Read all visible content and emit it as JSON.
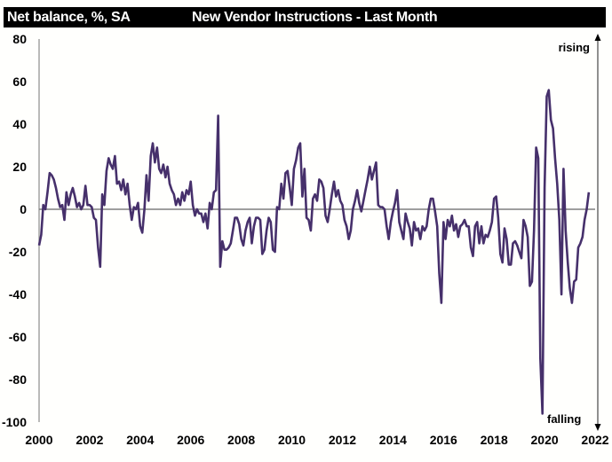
{
  "chart_data": {
    "type": "line",
    "title": "New Vendor Instructions - Last Month",
    "ylabel": "Net balance, %, SA",
    "xlabel": "",
    "ylim": [
      -100,
      80
    ],
    "xlim": [
      2000,
      2022
    ],
    "yticks": [
      "80",
      "60",
      "40",
      "20",
      "0",
      "-20",
      "-40",
      "-60",
      "-80",
      "-100"
    ],
    "ytick_values": [
      80,
      60,
      40,
      20,
      0,
      -20,
      -40,
      -60,
      -80,
      -100
    ],
    "xticks": [
      "2000",
      "2002",
      "2004",
      "2006",
      "2008",
      "2010",
      "2012",
      "2014",
      "2016",
      "2018",
      "2020",
      "2022"
    ],
    "xtick_values": [
      2000,
      2002,
      2004,
      2006,
      2008,
      2010,
      2012,
      2014,
      2016,
      2018,
      2020,
      2022
    ],
    "grid": false,
    "annotations": {
      "rising": "rising",
      "falling": "falling"
    },
    "line_color": "#46306b",
    "series": [
      {
        "name": "New Vendor Instructions",
        "start": 2000.0,
        "step_months": 1,
        "values": [
          -17,
          -12,
          2,
          0,
          8,
          17,
          16,
          14,
          10,
          5,
          1,
          2,
          -5,
          8,
          2,
          7,
          10,
          6,
          1,
          3,
          0,
          2,
          11,
          2,
          2,
          1,
          -4,
          -5,
          -18,
          -27,
          7,
          2,
          18,
          24,
          21,
          19,
          25,
          12,
          13,
          9,
          14,
          7,
          12,
          2,
          -5,
          1,
          0,
          3,
          -8,
          -11,
          0,
          16,
          4,
          25,
          31,
          22,
          29,
          19,
          17,
          21,
          15,
          20,
          12,
          9,
          7,
          2,
          5,
          2,
          8,
          4,
          9,
          7,
          13,
          2,
          -3,
          0,
          -2,
          -2,
          -6,
          -2,
          -9,
          3,
          0,
          8,
          9,
          44,
          -27,
          -15,
          -19,
          -19,
          -18,
          -16,
          -10,
          -4,
          -4,
          -7,
          -14,
          -17,
          -10,
          -6,
          -4,
          -16,
          -8,
          -4,
          -4,
          -5,
          -21,
          -19,
          -10,
          -4,
          -6,
          -19,
          -20,
          1,
          0,
          12,
          5,
          17,
          18,
          10,
          2,
          19,
          23,
          29,
          31,
          6,
          19,
          -4,
          -5,
          -10,
          5,
          7,
          4,
          14,
          13,
          10,
          -3,
          -6,
          0,
          7,
          13,
          6,
          9,
          4,
          2,
          -5,
          -8,
          -14,
          -10,
          0,
          4,
          9,
          3,
          -1,
          4,
          9,
          14,
          20,
          14,
          18,
          22,
          2,
          1,
          1,
          0,
          -8,
          -14,
          -6,
          -1,
          3,
          9,
          -6,
          -10,
          -14,
          -2,
          -6,
          -9,
          -17,
          -6,
          -10,
          -9,
          -14,
          -8,
          -10,
          -8,
          0,
          5,
          5,
          -1,
          -8,
          -30,
          -44,
          -6,
          -14,
          -5,
          -8,
          -3,
          -10,
          -7,
          -13,
          -8,
          -7,
          -5,
          -8,
          -8,
          -18,
          -22,
          -8,
          -6,
          -16,
          -8,
          -16,
          -12,
          -13,
          -10,
          -6,
          5,
          6,
          -4,
          -21,
          -25,
          -9,
          -14,
          -26,
          -26,
          -16,
          -15,
          -17,
          -20,
          -23,
          -5,
          -8,
          -13,
          -36,
          -34,
          -10,
          29,
          24,
          -70,
          -96,
          10,
          53,
          56,
          42,
          38,
          24,
          12,
          -5,
          -40,
          19,
          -10,
          -25,
          -37,
          -44,
          -34,
          -33,
          -18,
          -16,
          -13,
          -5,
          0,
          8
        ]
      }
    ]
  }
}
